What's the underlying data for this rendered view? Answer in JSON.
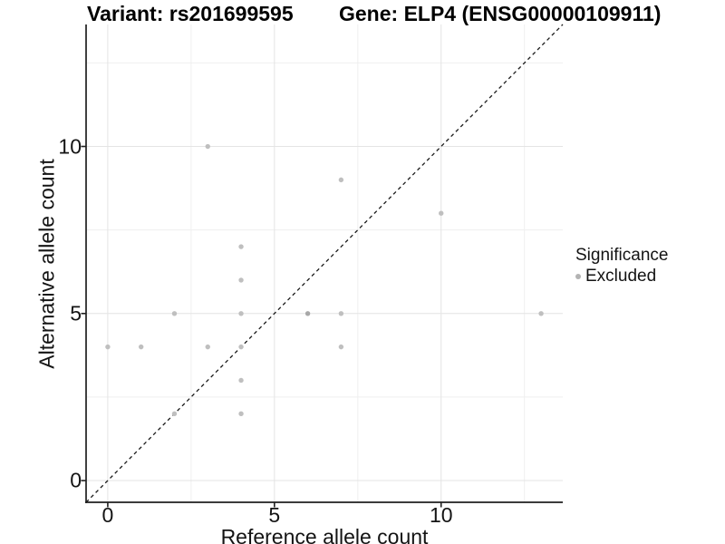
{
  "header": {
    "variant_title": "Variant: rs201699595",
    "gene_title": "Gene: ELP4 (ENSG00000109911)"
  },
  "chart_data": {
    "type": "scatter",
    "title_left": "Variant: rs201699595",
    "title_right": "Gene: ELP4 (ENSG00000109911)",
    "xlabel": "Reference allele count",
    "ylabel": "Alternative allele count",
    "xlim": [
      -0.65,
      13.65
    ],
    "ylim": [
      -0.65,
      13.65
    ],
    "x_ticks": [
      0,
      5,
      10
    ],
    "y_ticks": [
      0,
      5,
      10
    ],
    "x_minor_ticks": [
      2.5,
      7.5,
      12.5
    ],
    "y_minor_ticks": [
      2.5,
      7.5,
      12.5
    ],
    "grid": "major and minor, light gray, no panel border, black left/bottom axis lines",
    "identity_line": {
      "style": "dashed",
      "from": [
        -0.65,
        -0.65
      ],
      "to": [
        13.65,
        13.65
      ]
    },
    "series": [
      {
        "name": "Excluded",
        "points": [
          {
            "x": 0,
            "y": 4
          },
          {
            "x": 1,
            "y": 4
          },
          {
            "x": 2,
            "y": 2
          },
          {
            "x": 2,
            "y": 5
          },
          {
            "x": 3,
            "y": 4
          },
          {
            "x": 3,
            "y": 10
          },
          {
            "x": 4,
            "y": 2
          },
          {
            "x": 4,
            "y": 3
          },
          {
            "x": 4,
            "y": 4
          },
          {
            "x": 4,
            "y": 5
          },
          {
            "x": 4,
            "y": 6
          },
          {
            "x": 4,
            "y": 7
          },
          {
            "x": 6,
            "y": 5,
            "dark": true
          },
          {
            "x": 7,
            "y": 4
          },
          {
            "x": 7,
            "y": 5
          },
          {
            "x": 7,
            "y": 9
          },
          {
            "x": 10,
            "y": 8
          },
          {
            "x": 13,
            "y": 5
          }
        ]
      }
    ],
    "legend": {
      "title": "Significance",
      "position": "right",
      "items": [
        {
          "label": "Excluded"
        }
      ]
    }
  },
  "colors": {
    "point": "#bfbfbf",
    "point_dark": "#a8a8a8",
    "legend_dot": "#b3b3b3",
    "grid_major": "#e4e4e4",
    "grid_minor": "#efefef",
    "axis_line": "#1f1f1f",
    "dashed_line": "#1a1a1a",
    "background": "#ffffff"
  }
}
